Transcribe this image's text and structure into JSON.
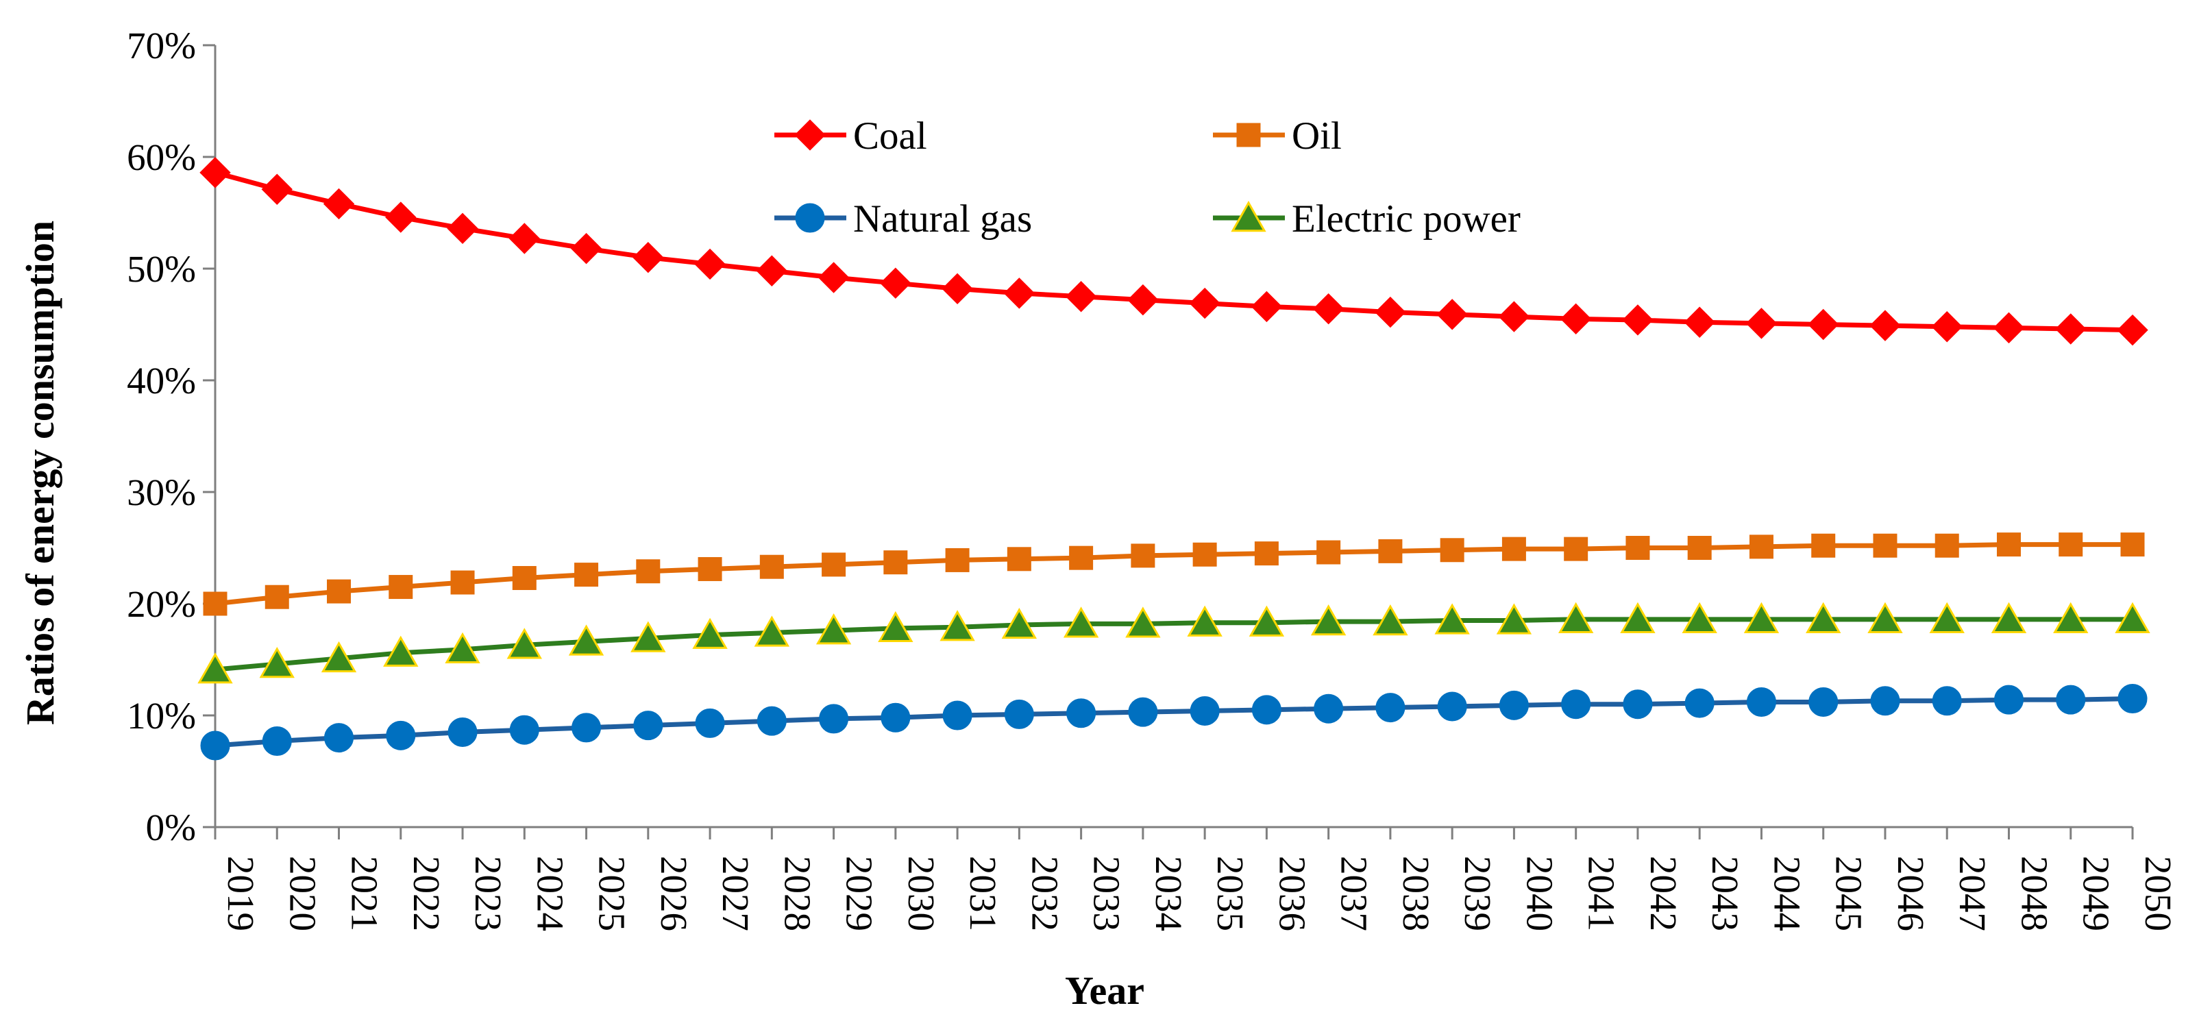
{
  "chart_data": {
    "type": "line",
    "title": "",
    "xlabel": "Year",
    "ylabel": "Ratios of energy  consumption",
    "ylim": [
      0,
      70
    ],
    "y_tick_values": [
      0,
      10,
      20,
      30,
      40,
      50,
      60,
      70
    ],
    "y_tick_labels": [
      "0%",
      "10%",
      "20%",
      "30%",
      "40%",
      "50%",
      "60%",
      "70%"
    ],
    "grid": false,
    "legend_position": "top-center",
    "categories": [
      "2019",
      "2020",
      "2021",
      "2022",
      "2023",
      "2024",
      "2025",
      "2026",
      "2027",
      "2028",
      "2029",
      "2030",
      "2031",
      "2032",
      "2033",
      "2034",
      "2035",
      "2036",
      "2037",
      "2038",
      "2039",
      "2040",
      "2041",
      "2042",
      "2043",
      "2044",
      "2045",
      "2046",
      "2047",
      "2048",
      "2049",
      "2050"
    ],
    "series": [
      {
        "name": "Coal",
        "marker": "diamond",
        "line_color": "#ff0000",
        "marker_color": "#ff0000",
        "values": [
          58.6,
          57.1,
          55.8,
          54.6,
          53.6,
          52.7,
          51.8,
          51.0,
          50.4,
          49.8,
          49.2,
          48.7,
          48.2,
          47.8,
          47.5,
          47.2,
          46.9,
          46.6,
          46.4,
          46.1,
          45.9,
          45.7,
          45.5,
          45.4,
          45.2,
          45.1,
          45.0,
          44.9,
          44.8,
          44.7,
          44.6,
          44.5
        ]
      },
      {
        "name": "Oil",
        "marker": "square",
        "line_color": "#e36c09",
        "marker_color": "#e36c09",
        "values": [
          20.0,
          20.6,
          21.1,
          21.5,
          21.9,
          22.3,
          22.6,
          22.9,
          23.1,
          23.3,
          23.5,
          23.7,
          23.9,
          24.0,
          24.1,
          24.3,
          24.4,
          24.5,
          24.6,
          24.7,
          24.8,
          24.9,
          24.9,
          25.0,
          25.0,
          25.1,
          25.2,
          25.2,
          25.2,
          25.3,
          25.3,
          25.3
        ]
      },
      {
        "name": "Natural gas",
        "marker": "circle",
        "line_color": "#1f5fa0",
        "marker_color": "#0070c0",
        "values": [
          7.3,
          7.7,
          8.0,
          8.2,
          8.5,
          8.7,
          8.9,
          9.1,
          9.3,
          9.5,
          9.7,
          9.8,
          10.0,
          10.1,
          10.2,
          10.3,
          10.4,
          10.5,
          10.6,
          10.7,
          10.8,
          10.9,
          11.0,
          11.0,
          11.1,
          11.2,
          11.2,
          11.3,
          11.3,
          11.4,
          11.4,
          11.5
        ]
      },
      {
        "name": "Electric power",
        "marker": "triangle",
        "line_color": "#2e7d1e",
        "marker_color": "#3a8a1e",
        "marker_edge": "#ffd700",
        "values": [
          14.1,
          14.6,
          15.1,
          15.6,
          15.9,
          16.3,
          16.6,
          16.9,
          17.2,
          17.4,
          17.6,
          17.8,
          17.9,
          18.1,
          18.2,
          18.2,
          18.3,
          18.3,
          18.4,
          18.4,
          18.5,
          18.5,
          18.6,
          18.6,
          18.6,
          18.6,
          18.6,
          18.6,
          18.6,
          18.6,
          18.6,
          18.6
        ]
      }
    ]
  }
}
